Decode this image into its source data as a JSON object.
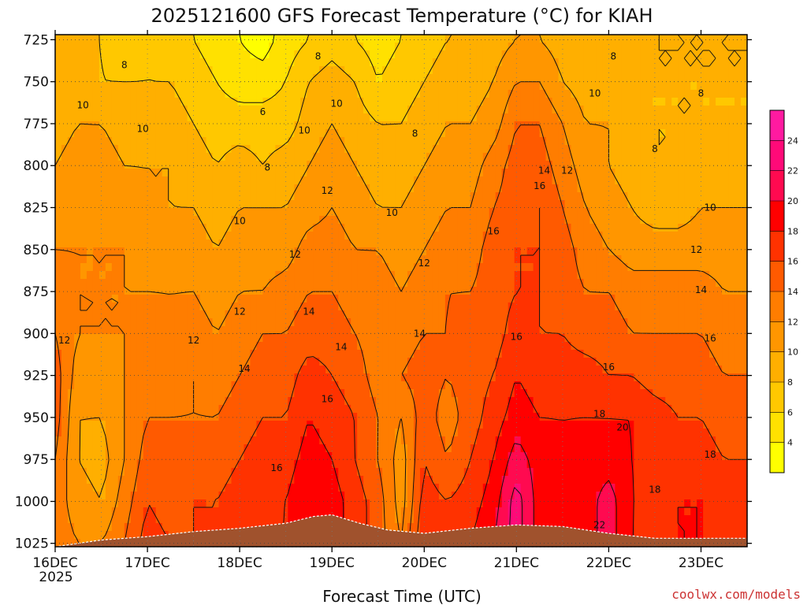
{
  "chart_data": {
    "type": "heatmap",
    "title": "2025121600 GFS Forecast Temperature (°C) for KIAH",
    "xlabel": "Forecast Time (UTC)",
    "ylabel": "",
    "x_ticks": [
      "16DEC",
      "17DEC",
      "18DEC",
      "19DEC",
      "20DEC",
      "21DEC",
      "22DEC",
      "23DEC"
    ],
    "x_year_label": "2025",
    "x_range_days": [
      0,
      7.5
    ],
    "y_ticks": [
      725,
      750,
      775,
      800,
      825,
      850,
      875,
      900,
      925,
      950,
      975,
      1000,
      1025
    ],
    "y_range": [
      722,
      1027
    ],
    "grid": true,
    "colorbar": {
      "placement": "right",
      "tick_labels": [
        "4",
        "6",
        "8",
        "10",
        "12",
        "14",
        "16",
        "18",
        "20",
        "22",
        "24"
      ],
      "levels": [
        2,
        4,
        6,
        8,
        10,
        12,
        14,
        16,
        18,
        20,
        22,
        24,
        26
      ],
      "colors": [
        "#ffff00",
        "#ffe100",
        "#ffc800",
        "#ffaf00",
        "#ff9600",
        "#ff7d00",
        "#ff5a00",
        "#ff3200",
        "#ff0000",
        "#ff0a50",
        "#ff0a78",
        "#ff1aa0"
      ]
    },
    "contour_labels": [
      {
        "text": "8",
        "day": 2.85,
        "p": 735
      },
      {
        "text": "8",
        "day": 0.75,
        "p": 740
      },
      {
        "text": "8",
        "day": 6.05,
        "p": 735
      },
      {
        "text": "8",
        "day": 3.9,
        "p": 781
      },
      {
        "text": "8",
        "day": 2.3,
        "p": 801
      },
      {
        "text": "8",
        "day": 6.5,
        "p": 790
      },
      {
        "text": "8",
        "day": 7.0,
        "p": 757
      },
      {
        "text": "6",
        "day": 2.25,
        "p": 768
      },
      {
        "text": "10",
        "day": 0.3,
        "p": 764
      },
      {
        "text": "10",
        "day": 0.95,
        "p": 778
      },
      {
        "text": "10",
        "day": 3.05,
        "p": 763
      },
      {
        "text": "10",
        "day": 2.7,
        "p": 779
      },
      {
        "text": "10",
        "day": 5.85,
        "p": 757
      },
      {
        "text": "10",
        "day": 2.0,
        "p": 833
      },
      {
        "text": "10",
        "day": 3.65,
        "p": 828
      },
      {
        "text": "10",
        "day": 7.1,
        "p": 825
      },
      {
        "text": "12",
        "day": 2.95,
        "p": 815
      },
      {
        "text": "12",
        "day": 2.6,
        "p": 853
      },
      {
        "text": "12",
        "day": 4.0,
        "p": 858
      },
      {
        "text": "12",
        "day": 2.0,
        "p": 887
      },
      {
        "text": "12",
        "day": 1.5,
        "p": 904
      },
      {
        "text": "12",
        "day": 0.1,
        "p": 904
      },
      {
        "text": "12",
        "day": 6.95,
        "p": 850
      },
      {
        "text": "12",
        "day": 5.55,
        "p": 803
      },
      {
        "text": "14",
        "day": 5.3,
        "p": 803
      },
      {
        "text": "14",
        "day": 2.75,
        "p": 887
      },
      {
        "text": "14",
        "day": 3.1,
        "p": 908
      },
      {
        "text": "14",
        "day": 2.05,
        "p": 921
      },
      {
        "text": "14",
        "day": 3.95,
        "p": 900
      },
      {
        "text": "14",
        "day": 7.0,
        "p": 874
      },
      {
        "text": "16",
        "day": 5.25,
        "p": 812
      },
      {
        "text": "16",
        "day": 4.75,
        "p": 839
      },
      {
        "text": "16",
        "day": 5.0,
        "p": 902
      },
      {
        "text": "16",
        "day": 6.0,
        "p": 920
      },
      {
        "text": "16",
        "day": 7.1,
        "p": 903
      },
      {
        "text": "16",
        "day": 2.95,
        "p": 939
      },
      {
        "text": "16",
        "day": 2.4,
        "p": 980
      },
      {
        "text": "18",
        "day": 5.9,
        "p": 948
      },
      {
        "text": "18",
        "day": 6.5,
        "p": 993
      },
      {
        "text": "18",
        "day": 7.1,
        "p": 972
      },
      {
        "text": "20",
        "day": 6.15,
        "p": 956
      },
      {
        "text": "22",
        "day": 5.9,
        "p": 1014
      }
    ],
    "series": [
      {
        "day": 0.0,
        "t": [
          9,
          9,
          9,
          10,
          11,
          12,
          13,
          14,
          15,
          15,
          14,
          13,
          13
        ]
      },
      {
        "day": 0.25,
        "t": [
          8,
          9,
          10,
          11,
          11,
          12,
          12,
          12,
          11,
          10,
          10,
          11,
          12
        ]
      },
      {
        "day": 0.5,
        "t": [
          8,
          8,
          10,
          11,
          12,
          12,
          12,
          12,
          11,
          10,
          9,
          10,
          12
        ]
      },
      {
        "day": 0.75,
        "t": [
          7,
          8,
          9,
          10,
          11,
          12,
          12,
          12,
          12,
          12,
          12,
          13,
          14
        ]
      },
      {
        "day": 1.0,
        "t": [
          8,
          8,
          9,
          10,
          10,
          11,
          12,
          13,
          13,
          14,
          15,
          16,
          17
        ]
      },
      {
        "day": 1.25,
        "t": [
          7,
          8,
          9,
          10,
          10,
          11,
          12,
          12,
          13,
          14,
          15,
          15,
          16
        ]
      },
      {
        "day": 1.5,
        "t": [
          6,
          7,
          8,
          9,
          10,
          11,
          12,
          13,
          14,
          14,
          15,
          16,
          16
        ]
      },
      {
        "day": 1.75,
        "t": [
          5,
          6,
          7,
          8,
          9,
          10,
          11,
          12,
          13,
          14,
          15,
          16,
          16
        ]
      },
      {
        "day": 2.0,
        "t": [
          4,
          5,
          7,
          9,
          10,
          11,
          12,
          13,
          14,
          15,
          16,
          17,
          18
        ]
      },
      {
        "day": 2.25,
        "t": [
          3,
          5,
          7,
          8,
          10,
          11,
          12,
          14,
          15,
          16,
          17,
          17,
          18
        ]
      },
      {
        "day": 2.5,
        "t": [
          5,
          6,
          7,
          9,
          10,
          11,
          13,
          14,
          15,
          16,
          17,
          18,
          18
        ]
      },
      {
        "day": 2.75,
        "t": [
          6,
          8,
          9,
          10,
          11,
          13,
          14,
          15,
          17,
          18,
          19,
          20,
          20
        ]
      },
      {
        "day": 3.0,
        "t": [
          7,
          9,
          10,
          11,
          12,
          13,
          14,
          15,
          16,
          17,
          18,
          19,
          19
        ]
      },
      {
        "day": 3.25,
        "t": [
          6,
          8,
          9,
          10,
          11,
          12,
          13,
          14,
          15,
          16,
          16,
          17,
          17
        ]
      },
      {
        "day": 3.5,
        "t": [
          5,
          6,
          8,
          9,
          10,
          12,
          13,
          13,
          13,
          14,
          14,
          15,
          15
        ]
      },
      {
        "day": 3.75,
        "t": [
          6,
          7,
          8,
          9,
          10,
          11,
          12,
          13,
          14,
          12,
          11,
          11,
          12
        ]
      },
      {
        "day": 4.0,
        "t": [
          7,
          8,
          9,
          10,
          11,
          12,
          13,
          14,
          15,
          15,
          16,
          17,
          18
        ]
      },
      {
        "day": 4.25,
        "t": [
          8,
          9,
          10,
          11,
          12,
          13,
          14,
          14,
          14,
          13,
          14,
          16,
          17
        ]
      },
      {
        "day": 4.5,
        "t": [
          8,
          9,
          10,
          11,
          12,
          13,
          14,
          15,
          15,
          15,
          16,
          17,
          18
        ]
      },
      {
        "day": 4.75,
        "t": [
          9,
          10,
          11,
          13,
          14,
          15,
          15,
          15,
          16,
          17,
          18,
          19,
          20
        ]
      },
      {
        "day": 5.0,
        "t": [
          10,
          12,
          14,
          15,
          15,
          16,
          16,
          17,
          18,
          19,
          21,
          23,
          23
        ]
      },
      {
        "day": 5.25,
        "t": [
          10,
          12,
          14,
          15,
          16,
          16,
          16,
          16,
          17,
          18,
          19,
          19,
          19
        ]
      },
      {
        "day": 5.5,
        "t": [
          9,
          10,
          12,
          13,
          14,
          15,
          15,
          16,
          17,
          18,
          18,
          18,
          18
        ]
      },
      {
        "day": 5.75,
        "t": [
          8,
          9,
          10,
          11,
          12,
          13,
          14,
          15,
          17,
          18,
          19,
          19,
          19
        ]
      },
      {
        "day": 6.0,
        "t": [
          8,
          9,
          10,
          10,
          11,
          12,
          14,
          15,
          16,
          18,
          19,
          21,
          21
        ]
      },
      {
        "day": 6.25,
        "t": [
          8,
          9,
          9,
          9,
          10,
          11,
          13,
          14,
          16,
          18,
          18,
          18,
          18
        ]
      },
      {
        "day": 6.5,
        "t": [
          8,
          8,
          8,
          8,
          9,
          11,
          13,
          14,
          15,
          17,
          17,
          18,
          17
        ]
      },
      {
        "day": 6.75,
        "t": [
          8,
          8,
          8,
          8,
          9,
          11,
          13,
          14,
          15,
          16,
          17,
          18,
          18
        ]
      },
      {
        "day": 7.0,
        "t": [
          8,
          8,
          8,
          9,
          10,
          11,
          13,
          14,
          15,
          16,
          17,
          18,
          18
        ]
      },
      {
        "day": 7.25,
        "t": [
          8,
          8,
          8,
          9,
          10,
          11,
          12,
          13,
          14,
          15,
          16,
          17,
          17
        ]
      },
      {
        "day": 7.5,
        "t": [
          8,
          8,
          8,
          9,
          10,
          11,
          12,
          13,
          14,
          15,
          16,
          17,
          17
        ]
      }
    ],
    "surface_pressure": [
      {
        "day": 0.0,
        "p": 1027
      },
      {
        "day": 0.5,
        "p": 1023
      },
      {
        "day": 1.0,
        "p": 1021
      },
      {
        "day": 1.5,
        "p": 1018
      },
      {
        "day": 2.0,
        "p": 1016
      },
      {
        "day": 2.5,
        "p": 1013
      },
      {
        "day": 2.8,
        "p": 1009
      },
      {
        "day": 3.0,
        "p": 1008
      },
      {
        "day": 3.3,
        "p": 1013
      },
      {
        "day": 3.6,
        "p": 1017
      },
      {
        "day": 4.0,
        "p": 1019
      },
      {
        "day": 4.5,
        "p": 1016
      },
      {
        "day": 5.0,
        "p": 1014
      },
      {
        "day": 5.5,
        "p": 1015
      },
      {
        "day": 6.0,
        "p": 1019
      },
      {
        "day": 6.5,
        "p": 1022
      },
      {
        "day": 7.0,
        "p": 1022
      },
      {
        "day": 7.5,
        "p": 1022
      }
    ]
  },
  "footer": {
    "credit": "coolwx.com/models"
  }
}
